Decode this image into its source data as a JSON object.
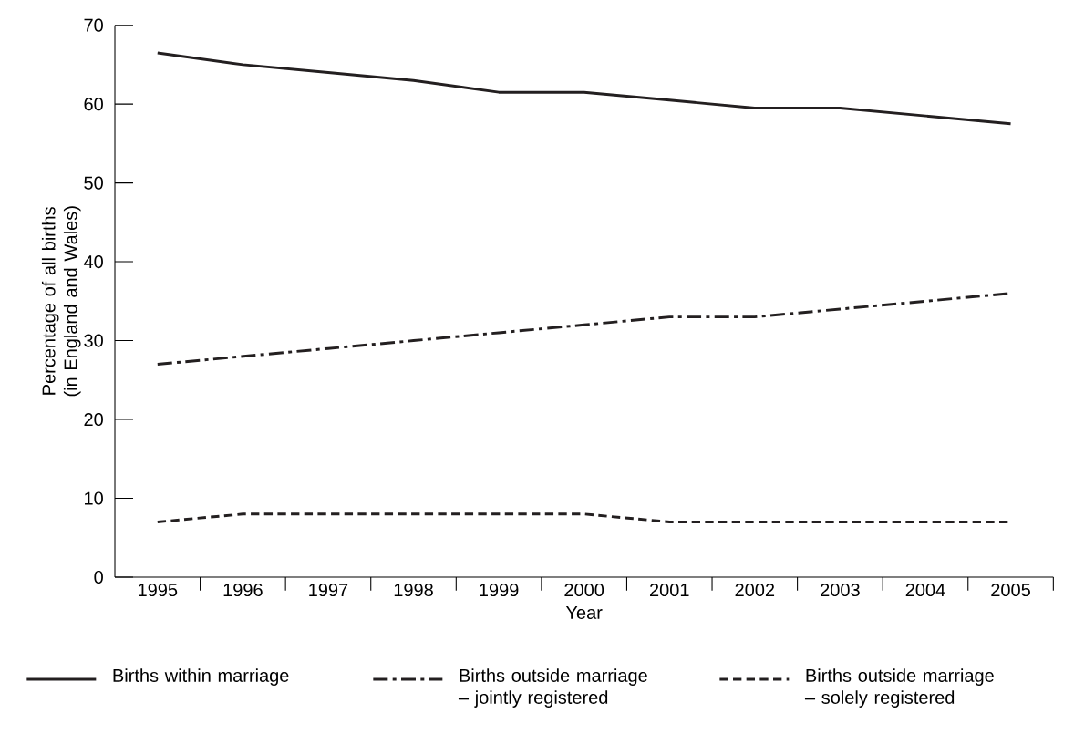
{
  "chart_data": {
    "type": "line",
    "xlabel": "Year",
    "ylabel": "Percentage of all births (in England and Wales)",
    "categories": [
      "1995",
      "1996",
      "1997",
      "1998",
      "1999",
      "2000",
      "2001",
      "2002",
      "2003",
      "2004",
      "2005"
    ],
    "ylim": [
      0,
      70
    ],
    "yticks": [
      0,
      10,
      20,
      30,
      40,
      50,
      60,
      70
    ],
    "legend": "bottom",
    "series": [
      {
        "name": "Births within marriage",
        "color": "#231f20",
        "line_style": "solid",
        "values": [
          66.5,
          65,
          64,
          63,
          61.5,
          61.5,
          60.5,
          59.5,
          59.5,
          58.5,
          57.5
        ]
      },
      {
        "name": "Births outside marriage – jointly registered",
        "color": "#231f20",
        "line_style": "dashdot",
        "values": [
          27,
          28,
          29,
          30,
          31,
          32,
          33,
          33,
          34,
          35,
          36
        ]
      },
      {
        "name": "Births outside marriage – solely registered",
        "color": "#231f20",
        "line_style": "dashed",
        "values": [
          7,
          8,
          8,
          8,
          8,
          8,
          7,
          7,
          7,
          7,
          7
        ]
      }
    ]
  }
}
